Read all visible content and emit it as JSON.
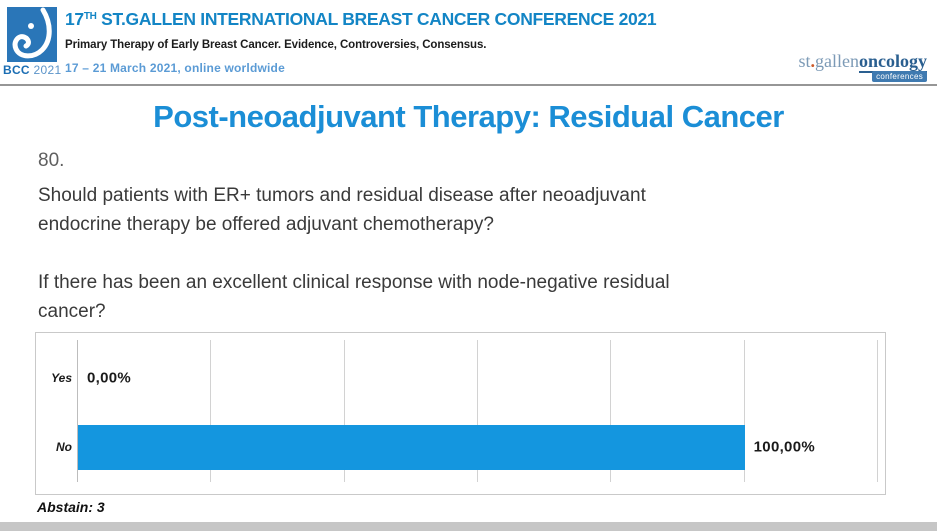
{
  "header": {
    "bcc_badge": {
      "name": "BCC",
      "year": "2021"
    },
    "title": {
      "prefix": "17",
      "sup": "TH",
      "rest": " ST.GALLEN INTERNATIONAL BREAST CANCER CONFERENCE 2021"
    },
    "subtitle": "Primary Therapy of Early Breast Cancer. Evidence, Controversies, Consensus.",
    "dates": "17 – 21 March 2021, online worldwide",
    "brand": {
      "st": "st",
      "dot": ".",
      "gallen": "gallen",
      "oncology": "oncology",
      "conferences": "conferences"
    }
  },
  "slide": {
    "title": "Post-neoadjuvant Therapy: Residual Cancer",
    "question_number": "80.",
    "question_lines": [
      "Should patients with ER+ tumors and residual disease after neoadjuvant",
      "endocrine therapy be offered adjuvant chemotherapy?"
    ],
    "subquestion_lines": [
      "If there has been an excellent clinical response with node-negative residual",
      "cancer?"
    ],
    "abstain_note": "Abstain: 3"
  },
  "chart_data": {
    "type": "bar",
    "orientation": "horizontal",
    "categories": [
      "Yes",
      "No"
    ],
    "values": [
      0,
      100
    ],
    "value_labels": [
      "0,00%",
      "100,00%"
    ],
    "xlim": [
      0,
      120
    ],
    "grid_step_percent": 20,
    "grid": true,
    "legend": false,
    "bar_color": "#1496df",
    "title": "",
    "xlabel": "",
    "ylabel": "",
    "abstain": 3
  },
  "colors": {
    "accent_blue": "#1b8ed6",
    "header_blue": "#1385c5",
    "date_blue": "#5b9bd5",
    "bar_blue": "#1496df",
    "logo_blue": "#2a76b8",
    "brand_light_blue": "#7c9ab6",
    "brand_dark_blue": "#2a5f90",
    "brand_orange": "#cc5a2a",
    "divider_gray": "#969696"
  }
}
